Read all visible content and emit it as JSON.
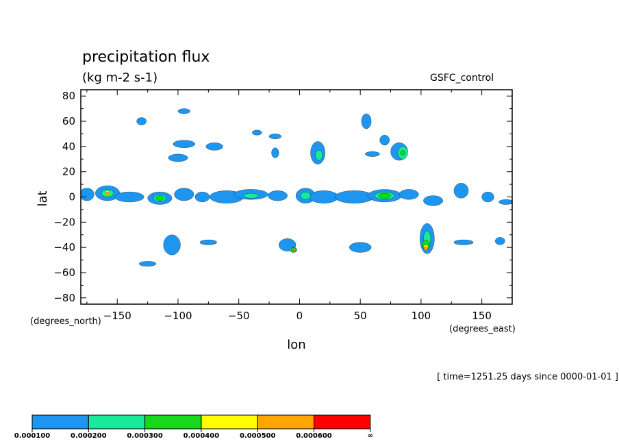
{
  "chart_data": {
    "type": "heatmap",
    "title": "precipitation flux",
    "units": "(kg m-2 s-1)",
    "dataset": "GSFC_control",
    "xlabel": "lon",
    "ylabel": "lat",
    "x_units": "(degrees_east)",
    "y_units": "(degrees_north)",
    "xlim": [
      -180,
      175
    ],
    "ylim": [
      -85,
      85
    ],
    "x_ticks": [
      -150,
      -100,
      -50,
      0,
      50,
      100,
      150
    ],
    "y_ticks": [
      80,
      60,
      40,
      20,
      0,
      -20,
      -40,
      -60,
      -80
    ],
    "time_note": "[ time=1251.25 days since 0000-01-01 ]",
    "colorbar": {
      "colors": [
        "#1e96f0",
        "#17eb9b",
        "#16d91c",
        "#ffff00",
        "#ffa500",
        "#ff0000"
      ],
      "levels": [
        "0.000100",
        "0.000200",
        "0.000300",
        "0.000400",
        "0.000500",
        "0.000600",
        "∞"
      ]
    },
    "contours": [
      {
        "level": 1,
        "lon": -175,
        "lat": 2,
        "rlon": 6,
        "rlat": 5
      },
      {
        "level": 1,
        "lon": -158,
        "lat": 3,
        "rlon": 10,
        "rlat": 6
      },
      {
        "level": 1,
        "lon": -140,
        "lat": 0,
        "rlon": 12,
        "rlat": 4
      },
      {
        "level": 1,
        "lon": -115,
        "lat": -1,
        "rlon": 10,
        "rlat": 5
      },
      {
        "level": 1,
        "lon": -95,
        "lat": 2,
        "rlon": 8,
        "rlat": 5
      },
      {
        "level": 1,
        "lon": -80,
        "lat": 0,
        "rlon": 6,
        "rlat": 4
      },
      {
        "level": 1,
        "lon": -60,
        "lat": 0,
        "rlon": 14,
        "rlat": 5
      },
      {
        "level": 1,
        "lon": -40,
        "lat": 2,
        "rlon": 14,
        "rlat": 4
      },
      {
        "level": 1,
        "lon": -18,
        "lat": 1,
        "rlon": 8,
        "rlat": 4
      },
      {
        "level": 1,
        "lon": 5,
        "lat": 1,
        "rlon": 8,
        "rlat": 6
      },
      {
        "level": 1,
        "lon": 20,
        "lat": 0,
        "rlon": 12,
        "rlat": 5
      },
      {
        "level": 1,
        "lon": 45,
        "lat": 0,
        "rlon": 16,
        "rlat": 5
      },
      {
        "level": 1,
        "lon": 70,
        "lat": 1,
        "rlon": 14,
        "rlat": 5
      },
      {
        "level": 1,
        "lon": 90,
        "lat": 2,
        "rlon": 8,
        "rlat": 4
      },
      {
        "level": 1,
        "lon": 110,
        "lat": -3,
        "rlon": 8,
        "rlat": 4
      },
      {
        "level": 1,
        "lon": 133,
        "lat": 5,
        "rlon": 6,
        "rlat": 6
      },
      {
        "level": 1,
        "lon": 155,
        "lat": 0,
        "rlon": 5,
        "rlat": 4
      },
      {
        "level": 1,
        "lon": 170,
        "lat": -4,
        "rlon": 6,
        "rlat": 2
      },
      {
        "level": 1,
        "lon": -95,
        "lat": 68,
        "rlon": 5,
        "rlat": 2
      },
      {
        "level": 1,
        "lon": -130,
        "lat": 60,
        "rlon": 4,
        "rlat": 3
      },
      {
        "level": 1,
        "lon": -95,
        "lat": 42,
        "rlon": 9,
        "rlat": 3
      },
      {
        "level": 1,
        "lon": -100,
        "lat": 31,
        "rlon": 8,
        "rlat": 3
      },
      {
        "level": 1,
        "lon": -70,
        "lat": 40,
        "rlon": 7,
        "rlat": 3
      },
      {
        "level": 1,
        "lon": -35,
        "lat": 51,
        "rlon": 4,
        "rlat": 2
      },
      {
        "level": 1,
        "lon": -20,
        "lat": 48,
        "rlon": 5,
        "rlat": 2
      },
      {
        "level": 1,
        "lon": -20,
        "lat": 35,
        "rlon": 3,
        "rlat": 4
      },
      {
        "level": 1,
        "lon": 15,
        "lat": 35,
        "rlon": 6,
        "rlat": 9
      },
      {
        "level": 1,
        "lon": 55,
        "lat": 60,
        "rlon": 4,
        "rlat": 6
      },
      {
        "level": 1,
        "lon": 60,
        "lat": 34,
        "rlon": 6,
        "rlat": 2
      },
      {
        "level": 1,
        "lon": 82,
        "lat": 36,
        "rlon": 7,
        "rlat": 7
      },
      {
        "level": 1,
        "lon": 70,
        "lat": 45,
        "rlon": 4,
        "rlat": 4
      },
      {
        "level": 1,
        "lon": -105,
        "lat": -38,
        "rlon": 7,
        "rlat": 8
      },
      {
        "level": 1,
        "lon": -125,
        "lat": -53,
        "rlon": 7,
        "rlat": 2
      },
      {
        "level": 1,
        "lon": -75,
        "lat": -36,
        "rlon": 7,
        "rlat": 2
      },
      {
        "level": 1,
        "lon": -10,
        "lat": -38,
        "rlon": 7,
        "rlat": 5
      },
      {
        "level": 1,
        "lon": 50,
        "lat": -40,
        "rlon": 9,
        "rlat": 4
      },
      {
        "level": 1,
        "lon": 105,
        "lat": -33,
        "rlon": 6,
        "rlat": 12
      },
      {
        "level": 1,
        "lon": 135,
        "lat": -36,
        "rlon": 8,
        "rlat": 2
      },
      {
        "level": 1,
        "lon": 165,
        "lat": -35,
        "rlon": 4,
        "rlat": 3
      },
      {
        "level": 2,
        "lon": -158,
        "lat": 3,
        "rlon": 5,
        "rlat": 3
      },
      {
        "level": 2,
        "lon": -115,
        "lat": -1,
        "rlon": 5,
        "rlat": 3
      },
      {
        "level": 2,
        "lon": -40,
        "lat": 1,
        "rlon": 6,
        "rlat": 2
      },
      {
        "level": 2,
        "lon": 5,
        "lat": 1,
        "rlon": 4,
        "rlat": 3
      },
      {
        "level": 2,
        "lon": 70,
        "lat": 1,
        "rlon": 8,
        "rlat": 3
      },
      {
        "level": 2,
        "lon": 16,
        "lat": 33,
        "rlon": 3,
        "rlat": 4
      },
      {
        "level": 2,
        "lon": 85,
        "lat": 35,
        "rlon": 4,
        "rlat": 5
      },
      {
        "level": 2,
        "lon": 105,
        "lat": -33,
        "rlon": 3,
        "rlat": 6
      },
      {
        "level": 2,
        "lon": -5,
        "lat": -42,
        "rlon": 3,
        "rlat": 2
      },
      {
        "level": 3,
        "lon": -115,
        "lat": -1,
        "rlon": 3,
        "rlat": 2
      },
      {
        "level": 3,
        "lon": 70,
        "lat": 1,
        "rlon": 5,
        "rlat": 2
      },
      {
        "level": 3,
        "lon": 85,
        "lat": 35,
        "rlon": 2,
        "rlat": 2
      },
      {
        "level": 3,
        "lon": 104,
        "lat": -38,
        "rlon": 3,
        "rlat": 4
      },
      {
        "level": 3,
        "lon": -5,
        "lat": -42,
        "rlon": 2,
        "rlat": 2
      },
      {
        "level": 4,
        "lon": -158,
        "lat": 3,
        "rlon": 2,
        "rlat": 2
      },
      {
        "level": 4,
        "lon": 104,
        "lat": -40,
        "rlon": 2,
        "rlat": 2
      },
      {
        "level": 5,
        "lon": -158,
        "lat": 3,
        "rlon": 1,
        "rlat": 1
      },
      {
        "level": 5,
        "lon": 104,
        "lat": -41,
        "rlon": 1.5,
        "rlat": 1.5
      },
      {
        "level": 5,
        "lon": -4,
        "lat": -42,
        "rlon": 1,
        "rlat": 1
      }
    ]
  }
}
